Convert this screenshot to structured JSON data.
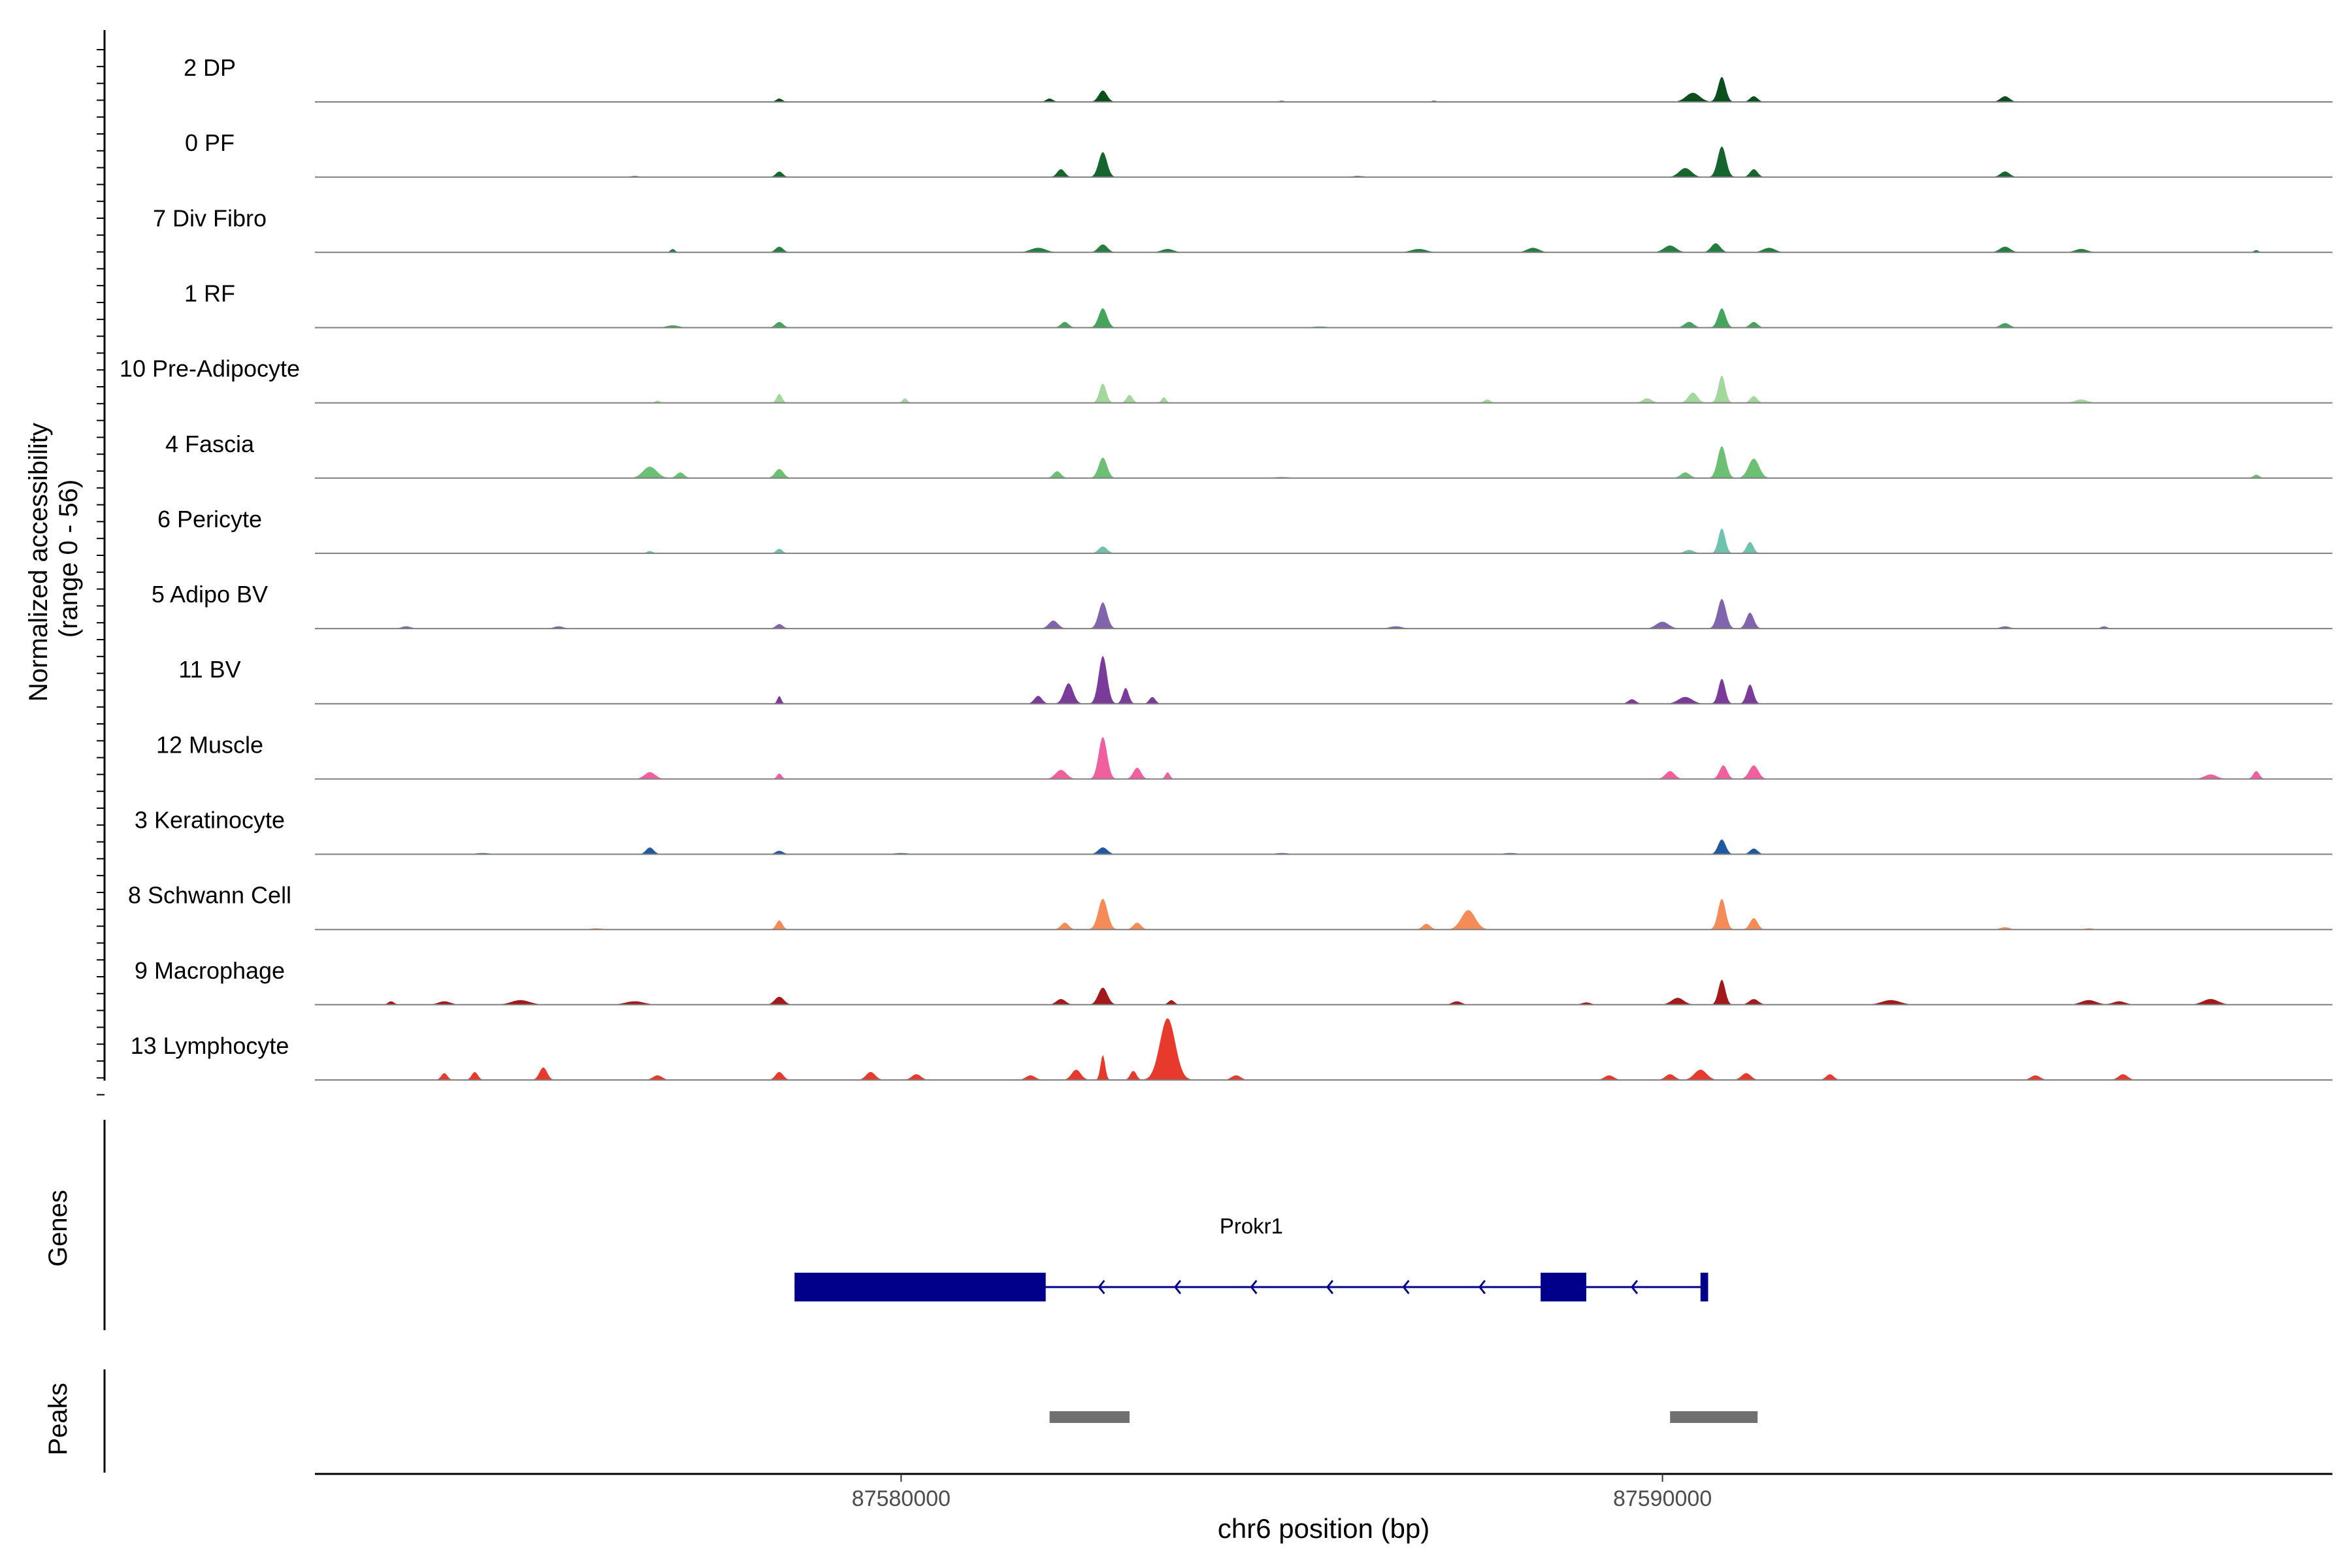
{
  "chart_data": {
    "type": "area",
    "ylabel_line1": "Normalized accessibility",
    "ylabel_line2": "(range 0 - 56)",
    "xlabel": "chr6 position (bp)",
    "xlim": [
      87572300,
      87598800
    ],
    "ylim": [
      0,
      56
    ],
    "x_ticks": [
      87580000,
      87590000
    ],
    "x_tick_labels": [
      "87580000",
      "87590000"
    ],
    "tracks": [
      {
        "name": "2 DP",
        "color": "#0b4f1f",
        "peaks": [
          [
            87578400,
            3,
            40
          ],
          [
            87582650,
            10,
            55
          ],
          [
            87581950,
            3,
            45
          ],
          [
            87590780,
            22,
            50
          ],
          [
            87590400,
            8,
            90
          ],
          [
            87591200,
            5,
            50
          ],
          [
            87594500,
            5,
            60
          ],
          [
            87585000,
            1,
            40
          ],
          [
            87587000,
            1,
            40
          ]
        ]
      },
      {
        "name": "0 PF",
        "color": "#17652e",
        "peaks": [
          [
            87578400,
            5,
            45
          ],
          [
            87582650,
            22,
            55
          ],
          [
            87582100,
            7,
            50
          ],
          [
            87590780,
            27,
            55
          ],
          [
            87590300,
            8,
            80
          ],
          [
            87591200,
            7,
            50
          ],
          [
            87594500,
            5,
            60
          ],
          [
            87576500,
            1,
            60
          ],
          [
            87586000,
            1,
            80
          ]
        ]
      },
      {
        "name": "7 Div Fibro",
        "color": "#257e3f",
        "peaks": [
          [
            87578400,
            5,
            50
          ],
          [
            87577000,
            3,
            30
          ],
          [
            87581800,
            4,
            100
          ],
          [
            87582650,
            7,
            60
          ],
          [
            87583500,
            3,
            80
          ],
          [
            87586800,
            3,
            100
          ],
          [
            87588300,
            4,
            80
          ],
          [
            87590100,
            6,
            80
          ],
          [
            87590700,
            8,
            60
          ],
          [
            87591400,
            4,
            80
          ],
          [
            87594500,
            5,
            70
          ],
          [
            87595500,
            3,
            80
          ],
          [
            87597800,
            2,
            30
          ]
        ]
      },
      {
        "name": "1 RF",
        "color": "#45a55d",
        "peaks": [
          [
            87578400,
            5,
            50
          ],
          [
            87582650,
            17,
            55
          ],
          [
            87582150,
            5,
            50
          ],
          [
            87590780,
            17,
            50
          ],
          [
            87590350,
            5,
            60
          ],
          [
            87591200,
            5,
            50
          ],
          [
            87594500,
            4,
            60
          ],
          [
            87577000,
            2,
            80
          ],
          [
            87585500,
            1,
            100
          ]
        ]
      },
      {
        "name": "10 Pre-Adipocyte",
        "color": "#a3d89c",
        "peaks": [
          [
            87578400,
            8,
            35
          ],
          [
            87582650,
            17,
            45
          ],
          [
            87583000,
            7,
            40
          ],
          [
            87583450,
            5,
            30
          ],
          [
            87580050,
            4,
            30
          ],
          [
            87590780,
            24,
            45
          ],
          [
            87590400,
            9,
            60
          ],
          [
            87591200,
            6,
            45
          ],
          [
            87589800,
            4,
            60
          ],
          [
            87587700,
            3,
            40
          ],
          [
            87595500,
            3,
            80
          ],
          [
            87576800,
            2,
            30
          ]
        ]
      },
      {
        "name": "4 Fascia",
        "color": "#6cc073",
        "peaks": [
          [
            87576700,
            10,
            90
          ],
          [
            87577100,
            5,
            50
          ],
          [
            87578400,
            8,
            55
          ],
          [
            87582650,
            18,
            55
          ],
          [
            87582050,
            6,
            50
          ],
          [
            87590780,
            28,
            55
          ],
          [
            87591200,
            17,
            70
          ],
          [
            87590300,
            5,
            60
          ],
          [
            87597800,
            3,
            40
          ],
          [
            87585000,
            1,
            100
          ]
        ]
      },
      {
        "name": "6 Pericyte",
        "color": "#6fc2ae",
        "peaks": [
          [
            87578400,
            4,
            40
          ],
          [
            87582650,
            6,
            55
          ],
          [
            87590780,
            22,
            45
          ],
          [
            87591150,
            10,
            45
          ],
          [
            87590350,
            3,
            60
          ],
          [
            87576700,
            2,
            40
          ]
        ]
      },
      {
        "name": "5 Adipo BV",
        "color": "#8065ad",
        "peaks": [
          [
            87578400,
            4,
            45
          ],
          [
            87582650,
            23,
            55
          ],
          [
            87582000,
            7,
            60
          ],
          [
            87590780,
            26,
            55
          ],
          [
            87591150,
            14,
            50
          ],
          [
            87590000,
            6,
            80
          ],
          [
            87573500,
            2,
            60
          ],
          [
            87575500,
            2,
            60
          ],
          [
            87586500,
            2,
            80
          ],
          [
            87594500,
            2,
            60
          ],
          [
            87595800,
            2,
            40
          ]
        ]
      },
      {
        "name": "11 BV",
        "color": "#7b3b9a",
        "peaks": [
          [
            87578400,
            7,
            25
          ],
          [
            87582650,
            42,
            55
          ],
          [
            87582200,
            18,
            60
          ],
          [
            87582950,
            14,
            40
          ],
          [
            87581800,
            7,
            50
          ],
          [
            87583300,
            6,
            40
          ],
          [
            87590780,
            22,
            45
          ],
          [
            87591150,
            17,
            45
          ],
          [
            87590300,
            6,
            90
          ],
          [
            87589600,
            4,
            50
          ]
        ]
      },
      {
        "name": "12 Muscle",
        "color": "#f0609e",
        "peaks": [
          [
            87576700,
            6,
            70
          ],
          [
            87578400,
            5,
            30
          ],
          [
            87582100,
            8,
            70
          ],
          [
            87582650,
            37,
            55
          ],
          [
            87583100,
            10,
            50
          ],
          [
            87583500,
            6,
            30
          ],
          [
            87590100,
            7,
            60
          ],
          [
            87590800,
            12,
            50
          ],
          [
            87591200,
            12,
            60
          ],
          [
            87597800,
            7,
            40
          ],
          [
            87597200,
            4,
            80
          ]
        ]
      },
      {
        "name": "3 Keratinocyte",
        "color": "#1f5aa0",
        "peaks": [
          [
            87576700,
            6,
            50
          ],
          [
            87578400,
            3,
            50
          ],
          [
            87582650,
            6,
            60
          ],
          [
            87590780,
            13,
            50
          ],
          [
            87591200,
            5,
            50
          ],
          [
            87574500,
            1,
            100
          ],
          [
            87580000,
            1,
            100
          ],
          [
            87585000,
            1,
            100
          ],
          [
            87588000,
            1,
            100
          ]
        ]
      },
      {
        "name": "8 Schwann Cell",
        "color": "#f58b56",
        "peaks": [
          [
            87578400,
            8,
            40
          ],
          [
            87582650,
            27,
            60
          ],
          [
            87582150,
            6,
            50
          ],
          [
            87583100,
            6,
            50
          ],
          [
            87587450,
            17,
            90
          ],
          [
            87586900,
            5,
            50
          ],
          [
            87590780,
            27,
            50
          ],
          [
            87591200,
            10,
            50
          ],
          [
            87594500,
            2,
            60
          ],
          [
            87595600,
            1,
            60
          ],
          [
            87576000,
            1,
            80
          ]
        ]
      },
      {
        "name": "9 Macrophage",
        "color": "#a31a1d",
        "peaks": [
          [
            87578400,
            7,
            60
          ],
          [
            87582650,
            15,
            60
          ],
          [
            87582100,
            5,
            60
          ],
          [
            87590780,
            22,
            45
          ],
          [
            87590200,
            6,
            80
          ],
          [
            87591200,
            5,
            60
          ],
          [
            87575000,
            4,
            120
          ],
          [
            87576500,
            3,
            120
          ],
          [
            87574000,
            3,
            80
          ],
          [
            87583550,
            4,
            40
          ],
          [
            87593000,
            4,
            120
          ],
          [
            87595600,
            4,
            100
          ],
          [
            87596000,
            3,
            80
          ],
          [
            87597200,
            5,
            100
          ],
          [
            87573300,
            3,
            40
          ],
          [
            87587300,
            3,
            60
          ],
          [
            87589000,
            2,
            60
          ]
        ]
      },
      {
        "name": "13 Lymphocyte",
        "color": "#e8392d",
        "peaks": [
          [
            87583500,
            54,
            100
          ],
          [
            87582650,
            22,
            30
          ],
          [
            87582300,
            9,
            60
          ],
          [
            87583050,
            8,
            40
          ],
          [
            87581700,
            4,
            60
          ],
          [
            87575300,
            11,
            50
          ],
          [
            87574400,
            7,
            40
          ],
          [
            87574000,
            6,
            40
          ],
          [
            87576800,
            4,
            60
          ],
          [
            87578400,
            7,
            50
          ],
          [
            87579600,
            7,
            60
          ],
          [
            87580200,
            5,
            60
          ],
          [
            87584400,
            4,
            60
          ],
          [
            87590500,
            9,
            80
          ],
          [
            87590100,
            5,
            60
          ],
          [
            87591100,
            6,
            60
          ],
          [
            87589300,
            4,
            60
          ],
          [
            87592200,
            5,
            50
          ],
          [
            87594900,
            4,
            60
          ],
          [
            87596050,
            5,
            60
          ]
        ]
      }
    ],
    "genes_label": "Genes",
    "gene": {
      "name": "Prokr1",
      "strand": "-",
      "start": 87578600,
      "end": 87590600,
      "exons": [
        [
          87578600,
          87581900
        ],
        [
          87588400,
          87589000
        ],
        [
          87590500,
          87590600
        ]
      ],
      "color": "#00008b"
    },
    "peaks_label": "Peaks",
    "peak_regions": [
      [
        87581950,
        87583000
      ],
      [
        87590100,
        87591250
      ]
    ],
    "peak_color": "#707070"
  }
}
